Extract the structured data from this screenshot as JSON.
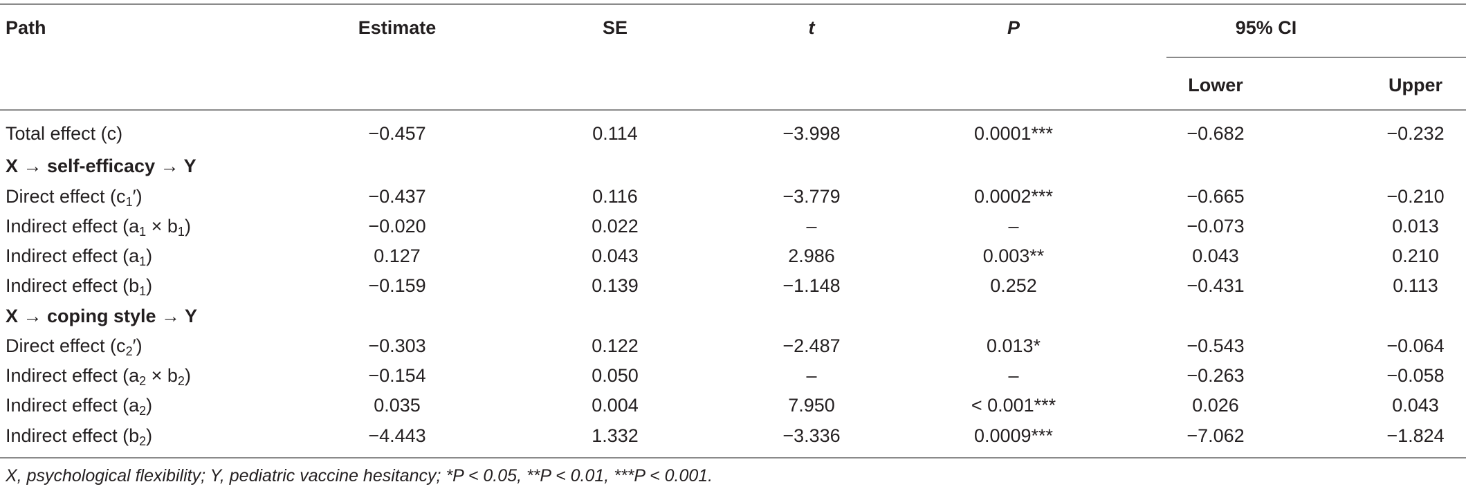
{
  "table": {
    "header": {
      "path": "Path",
      "columns": [
        "Estimate",
        "SE",
        "t",
        "P"
      ],
      "ci": "95% CI",
      "ci_columns": [
        "Lower",
        "Upper"
      ]
    },
    "rows": [
      {
        "path": [
          "Total effect (c)"
        ],
        "values": [
          "−0.457",
          "0.114",
          "−3.998",
          "0.0001***",
          "−0.682",
          "−0.232"
        ]
      },
      {
        "section": "X → self-efficacy → Y"
      },
      {
        "path": [
          "Direct effect (c",
          "1",
          "′)"
        ],
        "values": [
          "−0.437",
          "0.116",
          "−3.779",
          "0.0002***",
          "−0.665",
          "−0.210"
        ]
      },
      {
        "path": [
          "Indirect effect (a",
          "1",
          " × b",
          "1",
          ")"
        ],
        "values": [
          "−0.020",
          "0.022",
          "–",
          "–",
          "−0.073",
          "0.013"
        ]
      },
      {
        "path": [
          "Indirect effect (a",
          "1",
          ")"
        ],
        "values": [
          "0.127",
          "0.043",
          "2.986",
          "0.003**",
          "0.043",
          "0.210"
        ]
      },
      {
        "path": [
          "Indirect effect (b",
          "1",
          ")"
        ],
        "values": [
          "−0.159",
          "0.139",
          "−1.148",
          "0.252",
          "−0.431",
          "0.113"
        ]
      },
      {
        "section": "X → coping style → Y"
      },
      {
        "path": [
          "Direct effect (c",
          "2",
          "′)"
        ],
        "values": [
          "−0.303",
          "0.122",
          "−2.487",
          "0.013*",
          "−0.543",
          "−0.064"
        ]
      },
      {
        "path": [
          "Indirect effect (a",
          "2",
          " × b",
          "2",
          ")"
        ],
        "values": [
          "−0.154",
          "0.050",
          "–",
          "–",
          "−0.263",
          "−0.058"
        ]
      },
      {
        "path": [
          "Indirect effect (a",
          "2",
          ")"
        ],
        "values": [
          "0.035",
          "0.004",
          "7.950",
          "< 0.001***",
          "0.026",
          "0.043"
        ]
      },
      {
        "path": [
          "Indirect effect (b",
          "2",
          ")"
        ],
        "values": [
          "−4.443",
          "1.332",
          "−3.336",
          "0.0009***",
          "−7.062",
          "−1.824"
        ]
      }
    ],
    "footnote": "X, psychological flexibility; Y, pediatric vaccine hesitancy; *P < 0.05, **P < 0.01, ***P < 0.001."
  }
}
